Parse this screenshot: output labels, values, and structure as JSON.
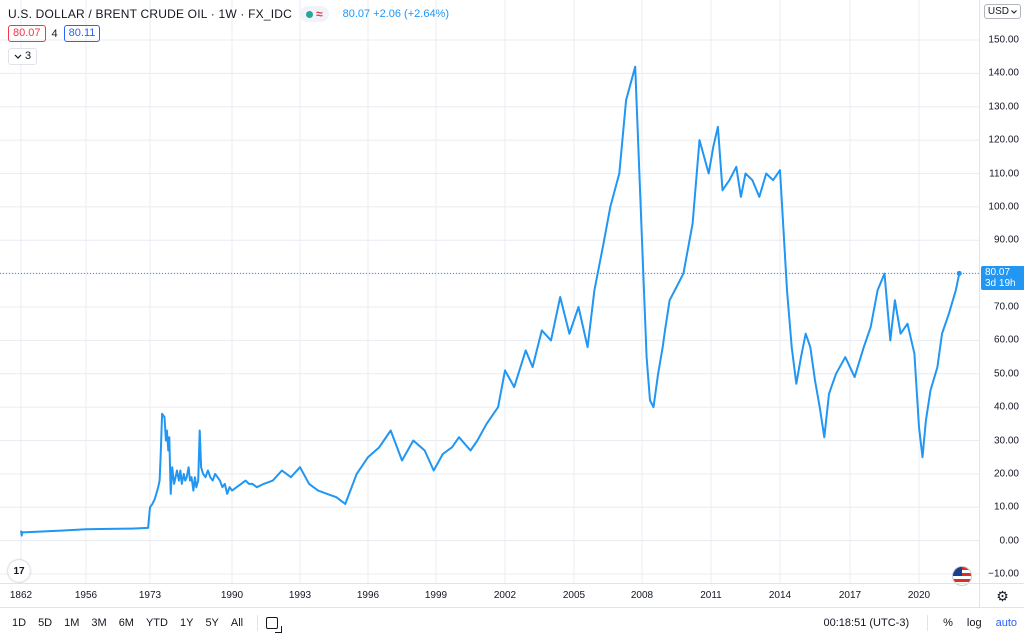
{
  "legend": {
    "title": "U.S. DOLLAR / BRENT CRUDE OIL · 1W · FX_IDC",
    "last_value": "80.07",
    "change": "+2.06 (+2.64%)",
    "sell_price": "80.07",
    "spread": "4",
    "buy_price": "80.11",
    "collapse_count": "3",
    "collapse_icon": "chevron-down-icon"
  },
  "price_axis": {
    "currency": "USD",
    "ticks": [
      "150.00",
      "140.00",
      "130.00",
      "120.00",
      "110.00",
      "100.00",
      "90.00",
      "80.00",
      "70.00",
      "60.00",
      "50.00",
      "40.00",
      "30.00",
      "20.00",
      "10.00",
      "0.00",
      "−10.00"
    ],
    "last_price_label": "80.07",
    "countdown_label": "3d 19h"
  },
  "time_axis": {
    "ticks": [
      "1862",
      "1956",
      "1973",
      "1990",
      "1993",
      "1996",
      "1999",
      "2002",
      "2005",
      "2008",
      "2011",
      "2014",
      "2017",
      "2020"
    ]
  },
  "bottom_bar": {
    "ranges": [
      "1D",
      "5D",
      "1M",
      "3M",
      "6M",
      "YTD",
      "1Y",
      "5Y",
      "All"
    ],
    "clock": "00:18:51 (UTC-3)",
    "percent_label": "%",
    "log_label": "log",
    "auto_label": "auto"
  },
  "logo_text": "17",
  "colors": {
    "series": "#2196f3",
    "sell": "#f23645",
    "buy": "#2962ff",
    "grid": "#e9ecf2",
    "active_toggle": "#2962ff"
  },
  "chart_data": {
    "type": "line",
    "x_unit": "year",
    "ylim": [
      -10,
      150
    ],
    "last_price": 80.07,
    "grid": true,
    "series": [
      {
        "x": [
          1862.0,
          1863.0,
          1864.0,
          1870.0,
          1880.0,
          1900.0,
          1920.0,
          1940.0,
          1956.0,
          1962.0,
          1968.0,
          1972.5,
          1973.0,
          1973.5,
          1974.0,
          1974.3,
          1974.7,
          1975.0,
          1975.2,
          1975.5,
          1976.0,
          1976.3,
          1976.5,
          1976.8,
          1977.0,
          1977.3,
          1977.6,
          1978.0,
          1978.3,
          1978.6,
          1979.0,
          1979.3,
          1979.6,
          1980.0,
          1980.3,
          1980.6,
          1981.0,
          1981.3,
          1981.6,
          1982.0,
          1982.3,
          1982.6,
          1983.0,
          1983.3,
          1983.6,
          1984.0,
          1984.5,
          1985.0,
          1985.5,
          1986.0,
          1986.5,
          1987.0,
          1987.5,
          1988.0,
          1988.5,
          1989.0,
          1989.5,
          1990.0,
          1990.4,
          1990.6,
          1990.75,
          1990.9,
          1991.1,
          1991.4,
          1991.8,
          1992.2,
          1992.6,
          1993.0,
          1993.4,
          1993.8,
          1994.2,
          1994.6,
          1995.0,
          1995.5,
          1996.0,
          1996.5,
          1997.0,
          1997.5,
          1998.0,
          1998.5,
          1998.9,
          1999.3,
          1999.7,
          2000.0,
          2000.5,
          2000.8,
          2001.2,
          2001.7,
          2002.0,
          2002.4,
          2002.9,
          2003.2,
          2003.6,
          2004.0,
          2004.4,
          2004.8,
          2005.2,
          2005.6,
          2005.9,
          2006.3,
          2006.6,
          2007.0,
          2007.3,
          2007.7,
          2008.0,
          2008.2,
          2008.35,
          2008.5,
          2008.7,
          2008.9,
          2009.0,
          2009.2,
          2009.5,
          2009.8,
          2010.2,
          2010.5,
          2010.9,
          2011.1,
          2011.3,
          2011.5,
          2011.8,
          2012.1,
          2012.3,
          2012.5,
          2012.8,
          2013.1,
          2013.4,
          2013.7,
          2014.0,
          2014.3,
          2014.5,
          2014.7,
          2014.9,
          2015.1,
          2015.3,
          2015.5,
          2015.7,
          2015.9,
          2016.1,
          2016.4,
          2016.8,
          2017.2,
          2017.6,
          2017.9,
          2018.2,
          2018.5,
          2018.75,
          2018.95,
          2019.2,
          2019.5,
          2019.8,
          2020.0,
          2020.15,
          2020.3,
          2020.5,
          2020.8,
          2021.0,
          2021.3,
          2021.6,
          2021.75
        ],
        "y": [
          3.0,
          1.5,
          2.5,
          2.5,
          2.6,
          2.8,
          3.0,
          3.2,
          3.4,
          3.5,
          3.6,
          3.8,
          10.0,
          11.0,
          12.5,
          14.0,
          16.0,
          18.0,
          25.0,
          38.0,
          37.0,
          30.0,
          33.0,
          27.0,
          31.0,
          14.0,
          22.0,
          17.0,
          19.0,
          21.0,
          18.0,
          21.0,
          17.0,
          20.0,
          18.0,
          19.0,
          22.0,
          18.0,
          19.0,
          15.0,
          19.0,
          16.0,
          18.0,
          33.0,
          22.0,
          20.0,
          19.0,
          21.0,
          19.0,
          18.0,
          20.0,
          19.0,
          18.0,
          16.0,
          17.0,
          14.0,
          16.0,
          15.0,
          17.0,
          18.0,
          17.0,
          17.0,
          16.0,
          17.0,
          18.0,
          21.0,
          19.0,
          22.0,
          17.0,
          15.0,
          14.0,
          13.0,
          11.0,
          20.0,
          25.0,
          28.0,
          33.0,
          24.0,
          30.0,
          27.0,
          21.0,
          26.0,
          28.0,
          31.0,
          27.0,
          30.0,
          35.0,
          40.0,
          51.0,
          46.0,
          57.0,
          52.0,
          63.0,
          60.0,
          73.0,
          62.0,
          70.0,
          58.0,
          75.0,
          89.0,
          100.0,
          110.0,
          132.0,
          142.0,
          90.0,
          55.0,
          42.0,
          40.0,
          50.0,
          58.0,
          63.0,
          72.0,
          76.0,
          80.0,
          95.0,
          120.0,
          110.0,
          118.0,
          124.0,
          105.0,
          108.0,
          112.0,
          103.0,
          110.0,
          108.0,
          103.0,
          110.0,
          108.0,
          111.0,
          75.0,
          58.0,
          47.0,
          55.0,
          62.0,
          58.0,
          48.0,
          40.0,
          31.0,
          44.0,
          50.0,
          55.0,
          49.0,
          58.0,
          64.0,
          75.0,
          80.0,
          60.0,
          72.0,
          62.0,
          65.0,
          56.0,
          34.0,
          25.0,
          36.0,
          45.0,
          52.0,
          62.0,
          68.0,
          75.0,
          80.07
        ]
      }
    ]
  }
}
